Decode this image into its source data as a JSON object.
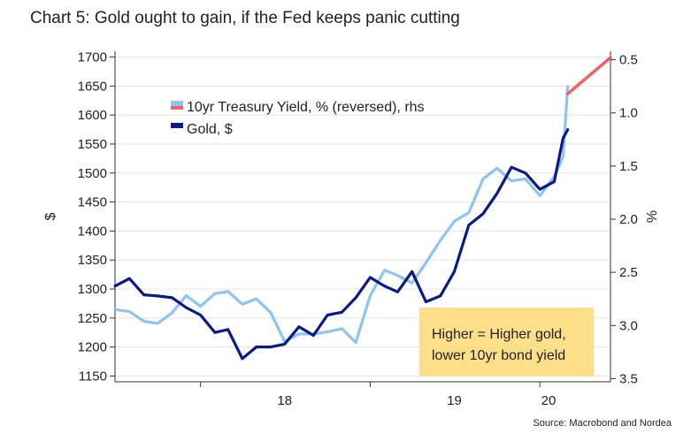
{
  "title": "Chart 5: Gold ought to gain, if the Fed keeps panic cutting",
  "source": "Source: Macrobond and Nordea",
  "chart_data": {
    "type": "line",
    "x_range": [
      "2017-07-01",
      "2020-06-01"
    ],
    "x_ticks": [
      {
        "label": "18",
        "date": "2018-01-01"
      },
      {
        "label": "19",
        "date": "2019-01-01"
      },
      {
        "label": "20",
        "date": "2020-01-01"
      }
    ],
    "ylabel_left": "$",
    "ylabel_right": "%",
    "ylim_left": [
      1140,
      1710
    ],
    "yticks_left": [
      1150,
      1200,
      1250,
      1300,
      1350,
      1400,
      1450,
      1500,
      1550,
      1600,
      1650,
      1700
    ],
    "ylim_right": [
      3.53,
      0.42
    ],
    "yticks_right": [
      0.5,
      1.0,
      1.5,
      2.0,
      2.5,
      3.0,
      3.5
    ],
    "right_axis_reversed": true,
    "grid": "horizontal",
    "legend_position": "upper-left",
    "colors": {
      "gold": "#0a1a8c",
      "yield": "#8ec4f0",
      "projection": "#f06060",
      "annotation_bg": "#fddf8a"
    },
    "series": [
      {
        "name": "10yr Treasury Yield, % (reversed), rhs",
        "axis": "right",
        "x": [
          "2017-07-01",
          "2017-08-01",
          "2017-09-01",
          "2017-10-01",
          "2017-11-01",
          "2017-12-01",
          "2018-01-01",
          "2018-02-01",
          "2018-03-01",
          "2018-04-01",
          "2018-05-01",
          "2018-06-01",
          "2018-07-01",
          "2018-08-01",
          "2018-09-01",
          "2018-10-01",
          "2018-11-01",
          "2018-12-01",
          "2019-01-01",
          "2019-02-01",
          "2019-03-01",
          "2019-04-01",
          "2019-05-01",
          "2019-06-01",
          "2019-07-01",
          "2019-08-01",
          "2019-09-01",
          "2019-10-01",
          "2019-11-01",
          "2019-12-01",
          "2020-01-01",
          "2020-02-01",
          "2020-02-20",
          "2020-03-01"
        ],
        "values": [
          2.85,
          2.87,
          2.96,
          2.98,
          2.88,
          2.72,
          2.82,
          2.7,
          2.68,
          2.8,
          2.75,
          2.88,
          3.15,
          3.08,
          3.08,
          3.06,
          3.03,
          3.16,
          2.72,
          2.48,
          2.53,
          2.6,
          2.41,
          2.2,
          2.02,
          1.94,
          1.62,
          1.52,
          1.64,
          1.62,
          1.78,
          1.6,
          1.41,
          0.75
        ]
      },
      {
        "name": "Gold, $",
        "axis": "left",
        "x": [
          "2017-07-01",
          "2017-08-01",
          "2017-09-01",
          "2017-10-01",
          "2017-11-01",
          "2017-12-01",
          "2018-01-01",
          "2018-02-01",
          "2018-03-01",
          "2018-04-01",
          "2018-05-01",
          "2018-06-01",
          "2018-07-01",
          "2018-08-01",
          "2018-09-01",
          "2018-10-01",
          "2018-11-01",
          "2018-12-01",
          "2019-01-01",
          "2019-02-01",
          "2019-03-01",
          "2019-04-01",
          "2019-05-01",
          "2019-06-01",
          "2019-07-01",
          "2019-08-01",
          "2019-09-01",
          "2019-10-01",
          "2019-11-01",
          "2019-12-01",
          "2020-01-01",
          "2020-02-01",
          "2020-02-20",
          "2020-03-01"
        ],
        "values": [
          1305,
          1318,
          1290,
          1288,
          1285,
          1268,
          1255,
          1225,
          1230,
          1180,
          1200,
          1200,
          1205,
          1235,
          1220,
          1255,
          1260,
          1285,
          1320,
          1305,
          1295,
          1330,
          1278,
          1288,
          1330,
          1410,
          1430,
          1465,
          1510,
          1500,
          1472,
          1485,
          1560,
          1575
        ]
      },
      {
        "name": "",
        "axis": "right",
        "style": "projection",
        "x": [
          "2020-03-01",
          "2020-06-01"
        ],
        "values": [
          0.82,
          0.48
        ]
      }
    ],
    "annotation": [
      "Higher = Higher gold,",
      "lower 10yr bond yield"
    ]
  }
}
